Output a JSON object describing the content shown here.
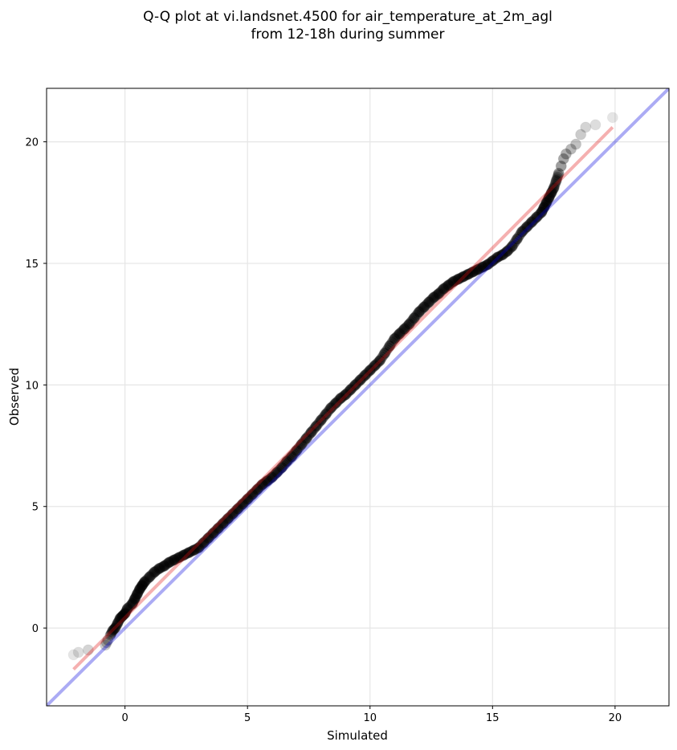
{
  "chart_data": {
    "type": "scatter",
    "title_line1": "Q-Q plot at vi.landsnet.4500 for air_temperature_at_2m_agl",
    "title_line2": "from 12-18h during summer",
    "xlabel": "Simulated",
    "ylabel": "Observed",
    "xlim": [
      -3.2,
      22.2
    ],
    "ylim": [
      -3.2,
      22.2
    ],
    "xticks": [
      0,
      5,
      10,
      15,
      20
    ],
    "yticks": [
      0,
      5,
      10,
      15,
      20
    ],
    "grid": true,
    "colors": {
      "points": "#000000",
      "identity_line": "#0000dd",
      "fit_line": "#e01010"
    },
    "series": [
      {
        "kind": "points",
        "x": [
          -2.1,
          -1.9,
          -1.5,
          -0.8,
          -0.75,
          -0.7,
          -0.6,
          -0.5,
          -0.4,
          -0.3,
          -0.2,
          -0.1,
          0.0,
          0.1,
          0.3,
          0.4,
          0.5,
          0.6,
          0.7,
          0.8,
          1.0,
          1.2,
          1.4,
          1.6,
          1.8,
          2.0,
          2.2,
          2.4,
          2.6,
          2.8,
          3.0,
          3.2,
          3.4,
          3.6,
          3.8,
          4.0,
          4.2,
          4.4,
          4.6,
          4.8,
          5.0,
          5.2,
          5.4,
          5.6,
          5.8,
          6.0,
          6.2,
          6.4,
          6.6,
          6.8,
          7.0,
          7.2,
          7.4,
          7.6,
          7.8,
          8.0,
          8.2,
          8.4,
          8.6,
          8.8,
          9.0,
          9.2,
          9.4,
          9.6,
          9.8,
          10.0,
          10.2,
          10.4,
          10.6,
          10.8,
          11.0,
          11.2,
          11.4,
          11.6,
          11.8,
          12.0,
          12.2,
          12.4,
          12.6,
          12.8,
          13.0,
          13.2,
          13.4,
          13.6,
          13.8,
          14.0,
          14.2,
          14.4,
          14.6,
          14.8,
          15.0,
          15.2,
          15.4,
          15.6,
          15.8,
          16.0,
          16.2,
          16.4,
          16.6,
          16.8,
          17.0,
          17.1,
          17.2,
          17.3,
          17.4,
          17.5,
          17.6,
          17.7,
          17.8,
          17.9,
          18.0,
          18.2,
          18.4,
          18.6,
          18.8,
          19.2,
          19.9
        ],
        "y": [
          -1.1,
          -1.0,
          -0.9,
          -0.7,
          -0.6,
          -0.5,
          -0.3,
          -0.1,
          0.0,
          0.2,
          0.4,
          0.5,
          0.6,
          0.8,
          1.0,
          1.2,
          1.4,
          1.6,
          1.75,
          1.9,
          2.1,
          2.3,
          2.45,
          2.55,
          2.7,
          2.8,
          2.9,
          3.0,
          3.1,
          3.2,
          3.3,
          3.5,
          3.7,
          3.9,
          4.1,
          4.3,
          4.5,
          4.7,
          4.9,
          5.1,
          5.3,
          5.5,
          5.7,
          5.9,
          6.05,
          6.2,
          6.4,
          6.6,
          6.85,
          7.05,
          7.3,
          7.55,
          7.8,
          8.05,
          8.3,
          8.55,
          8.8,
          9.05,
          9.25,
          9.45,
          9.6,
          9.8,
          10.0,
          10.2,
          10.4,
          10.6,
          10.8,
          11.0,
          11.3,
          11.6,
          11.9,
          12.1,
          12.3,
          12.5,
          12.75,
          13.0,
          13.2,
          13.4,
          13.6,
          13.75,
          13.95,
          14.1,
          14.25,
          14.35,
          14.45,
          14.55,
          14.65,
          14.75,
          14.85,
          14.95,
          15.1,
          15.25,
          15.35,
          15.5,
          15.7,
          16.0,
          16.3,
          16.5,
          16.7,
          16.9,
          17.1,
          17.3,
          17.5,
          17.7,
          17.9,
          18.1,
          18.4,
          18.7,
          19.0,
          19.3,
          19.5,
          19.7,
          19.9,
          20.3,
          20.6,
          20.7,
          21.0
        ]
      },
      {
        "kind": "identity_line",
        "x": [
          -3.2,
          22.2
        ],
        "y": [
          -3.2,
          22.2
        ]
      },
      {
        "kind": "fit_line",
        "x": [
          -2.1,
          19.9
        ],
        "y": [
          -1.7,
          20.6
        ]
      }
    ]
  }
}
